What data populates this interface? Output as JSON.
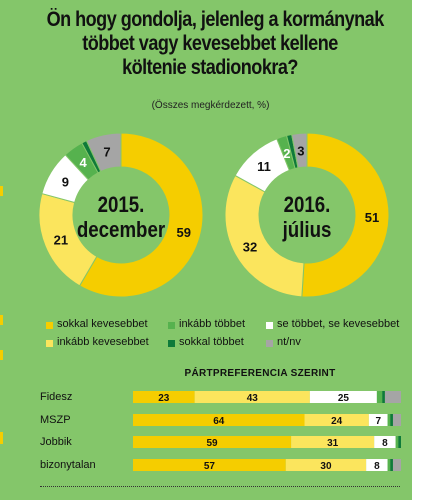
{
  "title_lines": [
    "Ön hogy gondolja, jelenleg a kormánynak",
    "többet vagy kevesebbet kellene",
    "költenie stadionokra?"
  ],
  "subtitle": "(Összes megkérdezett, %)",
  "colors": {
    "background": "#84c66a",
    "sokkal_kevesebbet": "#f5cd00",
    "inkabb_kevesebbet": "#fbe55d",
    "inkabb_tobbet": "#56b24e",
    "sokkal_tobbet": "#0f7a3a",
    "se_tobbet": "#ffffff",
    "nt_nv": "#a5a5a5"
  },
  "chart_data": [
    {
      "type": "pie",
      "variant": "donut",
      "center_label": [
        "2015.",
        "december"
      ],
      "slices": [
        {
          "name": "sokkal kevesebbet",
          "value": 59
        },
        {
          "name": "inkább kevesebbet",
          "value": 21
        },
        {
          "name": "se többet, se kevesebbet",
          "value": 9
        },
        {
          "name": "inkább többet",
          "value": 4
        },
        {
          "name": "sokkal többet",
          "value": 1
        },
        {
          "name": "nt/nv",
          "value": 7
        }
      ],
      "labels": [
        "59",
        "21",
        "9",
        "4",
        "",
        "7"
      ]
    },
    {
      "type": "pie",
      "variant": "donut",
      "center_label": [
        "2016.",
        "július"
      ],
      "slices": [
        {
          "name": "sokkal kevesebbet",
          "value": 51
        },
        {
          "name": "inkább kevesebbet",
          "value": 32
        },
        {
          "name": "se többet, se kevesebbet",
          "value": 11
        },
        {
          "name": "inkább többet",
          "value": 2
        },
        {
          "name": "sokkal többet",
          "value": 1
        },
        {
          "name": "nt/nv",
          "value": 3
        }
      ],
      "labels": [
        "51",
        "32",
        "11",
        "2",
        "",
        "3"
      ]
    },
    {
      "type": "bar",
      "orientation": "horizontal",
      "stacked": true,
      "title": "PÁRTPREFERENCIA SZERINT",
      "categories": [
        "Fidesz",
        "MSZP",
        "Jobbik",
        "bizonytalan"
      ],
      "series": [
        {
          "name": "sokkal kevesebbet",
          "values": [
            23,
            64,
            59,
            57
          ]
        },
        {
          "name": "inkább kevesebbet",
          "values": [
            43,
            24,
            31,
            30
          ]
        },
        {
          "name": "se többet, se kevesebbet",
          "values": [
            25,
            7,
            8,
            8
          ]
        },
        {
          "name": "inkább többet",
          "values": [
            2,
            1,
            1,
            1
          ]
        },
        {
          "name": "sokkal többet",
          "values": [
            1,
            1,
            1,
            1
          ]
        },
        {
          "name": "nt/nv",
          "values": [
            6,
            3,
            0,
            3
          ]
        }
      ],
      "value_labels": [
        [
          "23",
          "43",
          "25",
          "",
          "",
          ""
        ],
        [
          "64",
          "24",
          "7",
          "",
          "",
          ""
        ],
        [
          "59",
          "31",
          "8",
          "",
          "",
          ""
        ],
        [
          "57",
          "30",
          "8",
          "",
          "",
          ""
        ]
      ]
    }
  ],
  "legend": [
    {
      "label": "sokkal kevesebbet",
      "color_key": "sokkal_kevesebbet"
    },
    {
      "label": "inkább többet",
      "color_key": "inkabb_tobbet"
    },
    {
      "label": "se többet, se kevesebbet",
      "color_key": "se_tobbet"
    },
    {
      "label": "inkább kevesebbet",
      "color_key": "inkabb_kevesebbet"
    },
    {
      "label": "sokkal többet",
      "color_key": "sokkal_tobbet"
    },
    {
      "label": "nt/nv",
      "color_key": "nt_nv"
    }
  ]
}
